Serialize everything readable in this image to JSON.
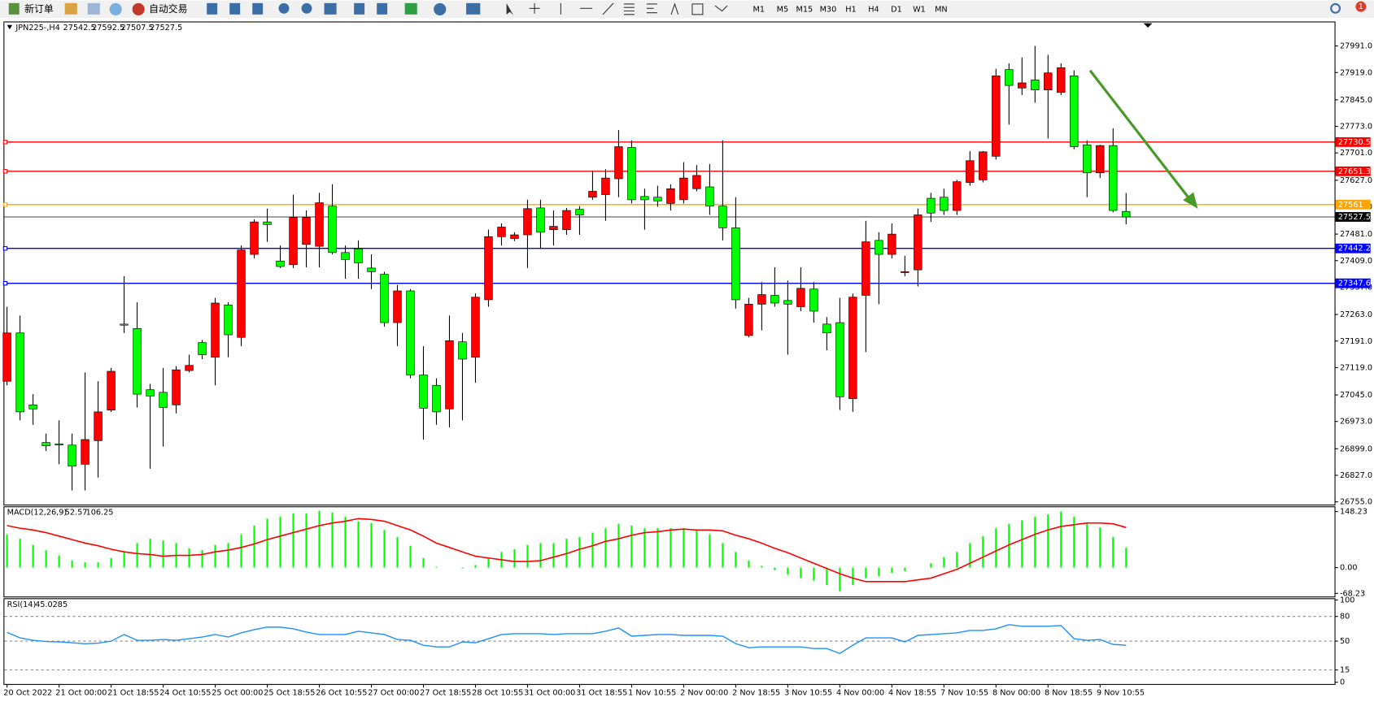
{
  "toolbar": {
    "new_order": "新订单",
    "auto_trading": "自动交易",
    "timeframes": [
      "M1",
      "M5",
      "M15",
      "M30",
      "H1",
      "H4",
      "D1",
      "W1",
      "MN"
    ],
    "badge": "1"
  },
  "chart_data": [
    {
      "type": "candlestick",
      "title": "JPN225-,H4",
      "categories": [
        "20 Oct 2022",
        null,
        null,
        null,
        "21 Oct 00:00",
        null,
        null,
        null,
        "21 Oct 18:55",
        null,
        null,
        null,
        "24 Oct 10:55",
        null,
        null,
        null,
        "25 Oct 00:00",
        null,
        null,
        null,
        "25 Oct 18:55",
        null,
        null,
        null,
        "26 Oct 10:55",
        null,
        null,
        null,
        "27 Oct 00:00",
        null,
        null,
        null,
        "27 Oct 18:55",
        null,
        null,
        null,
        "28 Oct 10:55",
        null,
        null,
        null,
        "31 Oct 00:00",
        null,
        null,
        null,
        "31 Oct 18:55",
        null,
        null,
        null,
        "1 Nov 10:55",
        null,
        null,
        null,
        "2 Nov 00:00",
        null,
        null,
        null,
        "2 Nov 18:55",
        null,
        null,
        null,
        "3 Nov 10:55",
        null,
        null,
        null,
        "4 Nov 00:00",
        null,
        null,
        null,
        "4 Nov 18:55",
        null,
        null,
        null,
        "7 Nov 10:55",
        null,
        null,
        null,
        "8 Nov 00:00",
        null,
        null,
        null,
        "8 Nov 18:55",
        null,
        null,
        null,
        "9 Nov 10:55",
        null,
        null
      ],
      "candles": [
        [
          27082,
          27284,
          27071,
          27213
        ],
        [
          27213,
          27260,
          26976,
          26999
        ],
        [
          27018,
          27047,
          26964,
          27007
        ],
        [
          26916,
          26940,
          26893,
          26907
        ],
        [
          26912,
          26976,
          26857,
          26909
        ],
        [
          26909,
          26940,
          26786,
          26852
        ],
        [
          26857,
          27106,
          26786,
          26924
        ],
        [
          26921,
          27082,
          26821,
          26999
        ],
        [
          27004,
          27118,
          26999,
          27109
        ],
        [
          27237,
          27367,
          27213,
          27234
        ],
        [
          27225,
          27296,
          27011,
          27047
        ],
        [
          27059,
          27075,
          26845,
          27042
        ],
        [
          27052,
          27118,
          26905,
          27011
        ],
        [
          27018,
          27123,
          26995,
          27113
        ],
        [
          27111,
          27154,
          27106,
          27125
        ],
        [
          27187,
          27194,
          27142,
          27154
        ],
        [
          27147,
          27308,
          27071,
          27294
        ],
        [
          27289,
          27296,
          27147,
          27208
        ],
        [
          27201,
          27450,
          27177,
          27438
        ],
        [
          27426,
          27521,
          27415,
          27514
        ],
        [
          27514,
          27550,
          27460,
          27507
        ],
        [
          27408,
          27450,
          27389,
          27393
        ],
        [
          27398,
          27588,
          27389,
          27526
        ],
        [
          27453,
          27545,
          27391,
          27526
        ],
        [
          27448,
          27593,
          27391,
          27566
        ],
        [
          27557,
          27616,
          27426,
          27431
        ],
        [
          27431,
          27450,
          27360,
          27412
        ],
        [
          27441,
          27464,
          27360,
          27403
        ],
        [
          27389,
          27426,
          27332,
          27379
        ],
        [
          27372,
          27379,
          27230,
          27241
        ],
        [
          27241,
          27343,
          27177,
          27327
        ],
        [
          27327,
          27332,
          27090,
          27099
        ],
        [
          27099,
          27177,
          26924,
          27009
        ],
        [
          27071,
          27090,
          26964,
          26999
        ],
        [
          27007,
          27260,
          26957,
          27192
        ],
        [
          27189,
          27213,
          26976,
          27142
        ],
        [
          27147,
          27320,
          27078,
          27310
        ],
        [
          27303,
          27493,
          27284,
          27474
        ],
        [
          27474,
          27510,
          27450,
          27500
        ],
        [
          27469,
          27486,
          27462,
          27479
        ],
        [
          27479,
          27574,
          27389,
          27550
        ],
        [
          27552,
          27574,
          27441,
          27486
        ],
        [
          27493,
          27545,
          27450,
          27502
        ],
        [
          27493,
          27552,
          27479,
          27545
        ],
        [
          27548,
          27557,
          27479,
          27533
        ],
        [
          27581,
          27652,
          27574,
          27597
        ],
        [
          27588,
          27657,
          27517,
          27633
        ],
        [
          27631,
          27763,
          27581,
          27718
        ],
        [
          27716,
          27735,
          27564,
          27574
        ],
        [
          27583,
          27604,
          27493,
          27574
        ],
        [
          27581,
          27612,
          27555,
          27571
        ],
        [
          27564,
          27616,
          27545,
          27604
        ],
        [
          27574,
          27676,
          27564,
          27633
        ],
        [
          27604,
          27668,
          27597,
          27640
        ],
        [
          27609,
          27671,
          27533,
          27557
        ],
        [
          27557,
          27735,
          27464,
          27498
        ],
        [
          27498,
          27581,
          27279,
          27303
        ],
        [
          27206,
          27308,
          27201,
          27291
        ],
        [
          27291,
          27351,
          27220,
          27317
        ],
        [
          27315,
          27391,
          27284,
          27294
        ],
        [
          27301,
          27355,
          27154,
          27291
        ],
        [
          27284,
          27391,
          27272,
          27334
        ],
        [
          27332,
          27351,
          27241,
          27272
        ],
        [
          27237,
          27256,
          27166,
          27213
        ],
        [
          27241,
          27308,
          27004,
          27040
        ],
        [
          27035,
          27320,
          26999,
          27310
        ],
        [
          27315,
          27517,
          27161,
          27460
        ],
        [
          27464,
          27486,
          27291,
          27426
        ],
        [
          27426,
          27510,
          27415,
          27481
        ],
        [
          27379,
          27422,
          27367,
          27379
        ],
        [
          27384,
          27550,
          27339,
          27533
        ],
        [
          27578,
          27593,
          27514,
          27538
        ],
        [
          27581,
          27604,
          27533,
          27545
        ],
        [
          27545,
          27628,
          27533,
          27623
        ],
        [
          27621,
          27706,
          27612,
          27680
        ],
        [
          27628,
          27706,
          27621,
          27704
        ],
        [
          27692,
          27929,
          27683,
          27910
        ],
        [
          27927,
          27944,
          27778,
          27884
        ],
        [
          27877,
          27960,
          27858,
          27891
        ],
        [
          27899,
          27991,
          27837,
          27872
        ],
        [
          27872,
          27967,
          27740,
          27918
        ],
        [
          27865,
          27944,
          27858,
          27932
        ],
        [
          27910,
          27925,
          27711,
          27718
        ],
        [
          27723,
          27735,
          27581,
          27647
        ],
        [
          27647,
          27723,
          27633,
          27721
        ],
        [
          27721,
          27768,
          27540,
          27545
        ],
        [
          27542.5,
          27592.5,
          27507.5,
          27527.5
        ]
      ],
      "colors": {
        "up": "#ff0000",
        "down": "#00ff00"
      },
      "ylim": [
        26750,
        28055
      ],
      "yticks": [
        {
          "value": 27991,
          "label": "27991.0"
        },
        {
          "value": 27919,
          "label": "27919.0"
        },
        {
          "value": 27845,
          "label": "27845.0"
        },
        {
          "value": 27773,
          "label": "27773.0"
        },
        {
          "value": 27701,
          "label": "27701.0"
        },
        {
          "value": 27627,
          "label": "27627.0"
        },
        {
          "value": 27555,
          "label": "27555.0"
        },
        {
          "value": 27481,
          "label": "27481.0"
        },
        {
          "value": 27409,
          "label": "27409.0"
        },
        {
          "value": 27337,
          "label": "27337.0"
        },
        {
          "value": 27263,
          "label": "27263.0"
        },
        {
          "value": 27191,
          "label": "27191.0"
        },
        {
          "value": 27119,
          "label": "27119.0"
        },
        {
          "value": 27045,
          "label": "27045.0"
        },
        {
          "value": 26973,
          "label": "26973.0"
        },
        {
          "value": 26899,
          "label": "26899.0"
        },
        {
          "value": 26827,
          "label": "26827.0"
        },
        {
          "value": 26755,
          "label": "26755.0"
        }
      ],
      "hlines": [
        {
          "value": 27730.5,
          "color": "#ff0000"
        },
        {
          "value": 27651.3,
          "color": "#ff0000"
        },
        {
          "value": 27561.0,
          "color": "#ffa500"
        },
        {
          "value": 27442.2,
          "color": "#0000ff"
        },
        {
          "value": 27347.6,
          "color": "#0000ff"
        }
      ]
    },
    {
      "type": "macd",
      "title": "MACD(12,26,9)",
      "histogram": {
        "color": "#00ff00",
        "values": [
          88.0,
          76.4,
          60.2,
          46.3,
          32.4,
          18.5,
          13.9,
          13.9,
          25.5,
          41.7,
          64.8,
          76.4,
          71.8,
          64.8,
          51.0,
          46.3,
          60.2,
          64.8,
          88.0,
          111.2,
          129.7,
          134.3,
          143.6,
          143.6,
          150.5,
          145.9,
          134.3,
          122.7,
          118.1,
          99.6,
          81.1,
          57.9,
          25.5,
          2.3,
          0,
          -2.3,
          6.9,
          25.5,
          41.7,
          48.6,
          60.2,
          64.8,
          64.8,
          76.4,
          81.1,
          92.6,
          104.2,
          115.8,
          111.2,
          104.2,
          104.2,
          104.2,
          104.2,
          99.6,
          88.0,
          64.8,
          41.7,
          18.5,
          4.6,
          -6.9,
          -18.5,
          -27.8,
          -34.7,
          -46.3,
          -62.5,
          -46.3,
          -27.8,
          -23.2,
          -13.9,
          -9.3,
          0,
          11.6,
          27.8,
          41.7,
          64.8,
          83.4,
          104.2,
          115.8,
          125.1,
          134.3,
          141.3,
          148.2,
          134.3,
          118.1,
          106.5,
          81.1,
          52.57
        ]
      },
      "signal": {
        "color": "#ff0000",
        "values": [
          111.2,
          104.2,
          99.6,
          92.6,
          83.4,
          74.1,
          64.8,
          57.9,
          48.6,
          41.7,
          37.1,
          34.7,
          30.1,
          32.4,
          32.4,
          34.7,
          41.7,
          46.3,
          53.3,
          62.5,
          74.1,
          83.4,
          92.6,
          101.9,
          111.2,
          118.1,
          122.7,
          129.7,
          127.4,
          122.7,
          111.2,
          99.6,
          83.4,
          64.8,
          53.3,
          41.7,
          30.1,
          25.5,
          20.8,
          16.2,
          16.2,
          18.5,
          27.8,
          37.1,
          48.6,
          57.9,
          69.5,
          76.4,
          85.7,
          92.6,
          95.0,
          99.6,
          101.9,
          99.6,
          99.6,
          97.3,
          85.7,
          76.4,
          64.8,
          51.0,
          39.4,
          25.5,
          11.6,
          -2.3,
          -16.2,
          -27.8,
          -37.1,
          -37.1,
          -37.1,
          -37.1,
          -32.4,
          -27.8,
          -16.2,
          -4.6,
          11.6,
          27.8,
          44.0,
          60.2,
          74.1,
          88.0,
          99.6,
          108.9,
          113.5,
          118.1,
          118.1,
          115.8,
          106.25
        ]
      },
      "ylim": [
        -76.4,
        162.1
      ],
      "yticks": [
        148.23,
        {
          "value": 0,
          "label": "0.00"
        },
        -68.23
      ]
    },
    {
      "type": "line",
      "title": "RSI(14)",
      "color": "#1e90ff",
      "values": [
        60.7,
        54,
        51,
        49.5,
        49,
        48,
        46.8,
        47.5,
        50,
        58,
        51,
        51,
        52,
        51,
        53,
        55,
        58,
        55,
        60,
        64,
        67,
        67,
        65,
        61,
        58,
        58,
        58,
        62,
        60,
        58,
        52,
        51,
        45,
        43,
        43,
        49,
        48,
        53,
        58,
        59,
        59,
        59,
        58,
        59,
        59,
        59,
        62,
        66,
        56,
        57,
        58,
        58,
        57,
        57,
        57,
        56,
        47,
        42,
        43,
        43,
        43,
        43,
        41,
        41,
        35,
        45,
        54,
        54,
        54,
        49,
        57,
        58,
        59,
        60,
        63,
        63,
        65,
        70,
        68,
        68,
        68,
        69,
        53,
        51,
        52,
        46,
        45.0285
      ],
      "ylim": [
        0,
        100
      ],
      "yticks": [
        100,
        80,
        50,
        15,
        0
      ]
    }
  ]
}
